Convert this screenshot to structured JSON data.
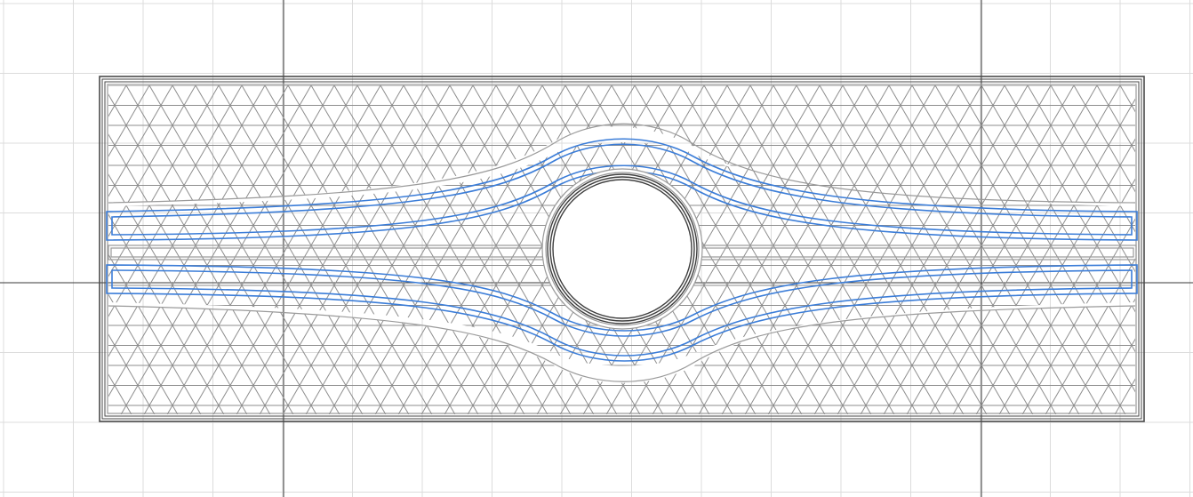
{
  "viewer": {
    "background": "#ffffff",
    "grid_minor_color": "#dcdcdc",
    "grid_major_color": "#3a3a3a"
  },
  "part": {
    "outline_color": "#4a4a4a",
    "wall_color": "#9a9a9a",
    "infill_color": "#8e8e8e",
    "infill_pattern": "triangles",
    "feature_color": "#3b7dd8",
    "hole": "circular"
  }
}
